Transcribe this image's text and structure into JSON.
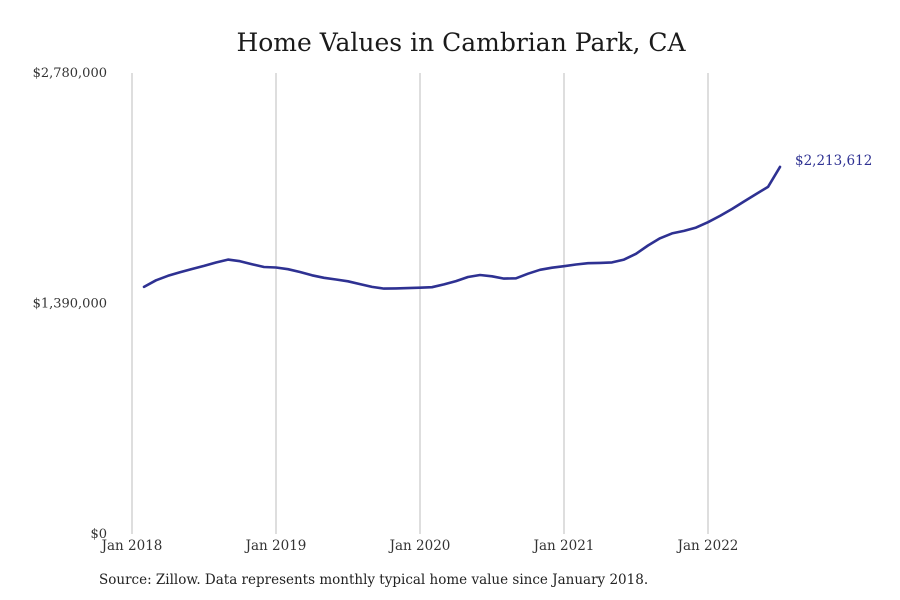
{
  "chart_data": {
    "type": "line",
    "title": "Home Values in Cambrian Park, CA",
    "xlabel": "",
    "ylabel": "",
    "y_ticks": [
      "$2,780,000",
      "$1,390,000",
      "$0"
    ],
    "y_tick_values": [
      2780000,
      1390000,
      0
    ],
    "ylim": [
      0,
      2780000
    ],
    "x_ticks": [
      "Jan 2018",
      "Jan 2019",
      "Jan 2020",
      "Jan 2021",
      "Jan 2022"
    ],
    "x_tick_dates": [
      "2018-01",
      "2019-01",
      "2020-01",
      "2021-01",
      "2022-01"
    ],
    "xlim": [
      "2018-01",
      "2022-12"
    ],
    "grid": "vertical",
    "color": "#2e3192",
    "end_label": "$2,213,612",
    "series": [
      {
        "x": [
          "2018-02",
          "2018-03",
          "2018-04",
          "2018-05",
          "2018-06",
          "2018-07",
          "2018-08",
          "2018-09",
          "2018-10",
          "2018-11",
          "2018-12",
          "2019-01",
          "2019-02",
          "2019-03",
          "2019-04",
          "2019-05",
          "2019-06",
          "2019-07",
          "2019-08",
          "2019-09",
          "2019-10",
          "2019-11",
          "2019-12",
          "2020-01",
          "2020-02",
          "2020-03",
          "2020-04",
          "2020-05",
          "2020-06",
          "2020-07",
          "2020-08",
          "2020-09",
          "2020-10",
          "2020-11",
          "2020-12",
          "2021-01",
          "2021-02",
          "2021-03",
          "2021-04",
          "2021-05",
          "2021-06",
          "2021-07",
          "2021-08",
          "2021-09",
          "2021-10",
          "2021-11",
          "2021-12",
          "2022-01",
          "2022-02",
          "2022-03",
          "2022-04",
          "2022-05",
          "2022-06",
          "2022-07"
        ],
        "values": [
          1490000,
          1530000,
          1557000,
          1578000,
          1598000,
          1617000,
          1637000,
          1655000,
          1645000,
          1627000,
          1610000,
          1607000,
          1597000,
          1580000,
          1560000,
          1545000,
          1535000,
          1524000,
          1507000,
          1490000,
          1480000,
          1481000,
          1483000,
          1485000,
          1488000,
          1505000,
          1525000,
          1550000,
          1562000,
          1554000,
          1540000,
          1542000,
          1570000,
          1593000,
          1606000,
          1615000,
          1625000,
          1633000,
          1635000,
          1638000,
          1655000,
          1690000,
          1740000,
          1783000,
          1813000,
          1828000,
          1848000,
          1880000,
          1918000,
          1960000,
          2005000,
          2050000,
          2093000,
          2213612
        ]
      }
    ]
  },
  "source": "Source: Zillow. Data represents monthly typical home value since January 2018."
}
